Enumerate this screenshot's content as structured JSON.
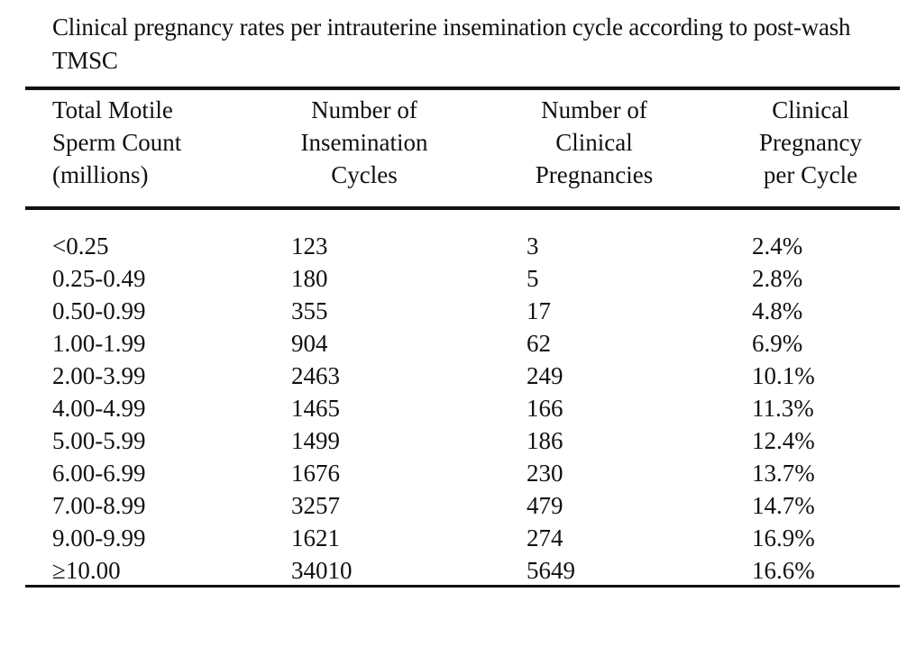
{
  "caption": "Clinical pregnancy rates per intrauterine insemination cycle according to post-wash TMSC",
  "headers": [
    [
      "Total Motile",
      "Sperm Count",
      "(millions)"
    ],
    [
      "Number of",
      "Insemination",
      "Cycles"
    ],
    [
      "Number of",
      "Clinical",
      "Pregnancies"
    ],
    [
      "Clinical",
      "Pregnancy",
      "per Cycle"
    ]
  ],
  "rows": [
    [
      "<0.25",
      "123",
      "3",
      "2.4%"
    ],
    [
      "0.25-0.49",
      "180",
      "5",
      "2.8%"
    ],
    [
      "0.50-0.99",
      "355",
      "17",
      "4.8%"
    ],
    [
      "1.00-1.99",
      "904",
      "62",
      "6.9%"
    ],
    [
      "2.00-3.99",
      "2463",
      "249",
      "10.1%"
    ],
    [
      "4.00-4.99",
      "1465",
      "166",
      "11.3%"
    ],
    [
      "5.00-5.99",
      "1499",
      "186",
      "12.4%"
    ],
    [
      "6.00-6.99",
      "1676",
      "230",
      "13.7%"
    ],
    [
      "7.00-8.99",
      "3257",
      "479",
      "14.7%"
    ],
    [
      "9.00-9.99",
      "1621",
      "274",
      "16.9%"
    ],
    [
      "≥10.00",
      "34010",
      "5649",
      "16.6%"
    ]
  ]
}
